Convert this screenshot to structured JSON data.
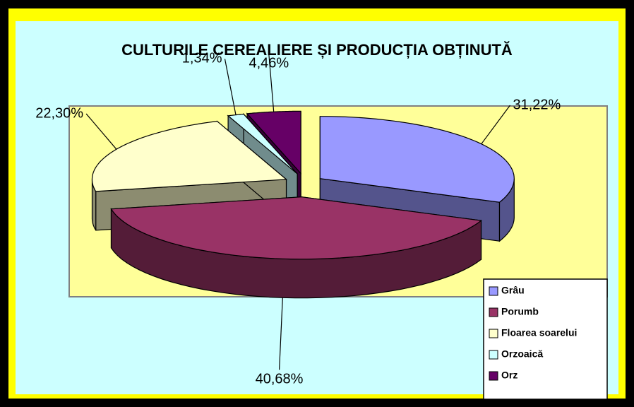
{
  "chart_data": {
    "type": "pie3d",
    "title": "CULTURILE CEREALIERE ȘI PRODUCȚIA OBȚINUTĂ",
    "categories": [
      "Grâu",
      "Porumb",
      "Floarea soarelui",
      "Orzoaică",
      "Orz"
    ],
    "values": [
      31.22,
      40.68,
      22.3,
      1.34,
      4.46
    ],
    "value_labels": [
      "31,22%",
      "40,68%",
      "22,30%",
      "1,34%",
      "4,46%"
    ],
    "colors": [
      "#9999ff",
      "#993366",
      "#ffffcc",
      "#ccffff",
      "#660066"
    ],
    "legend": "bottom-right"
  }
}
